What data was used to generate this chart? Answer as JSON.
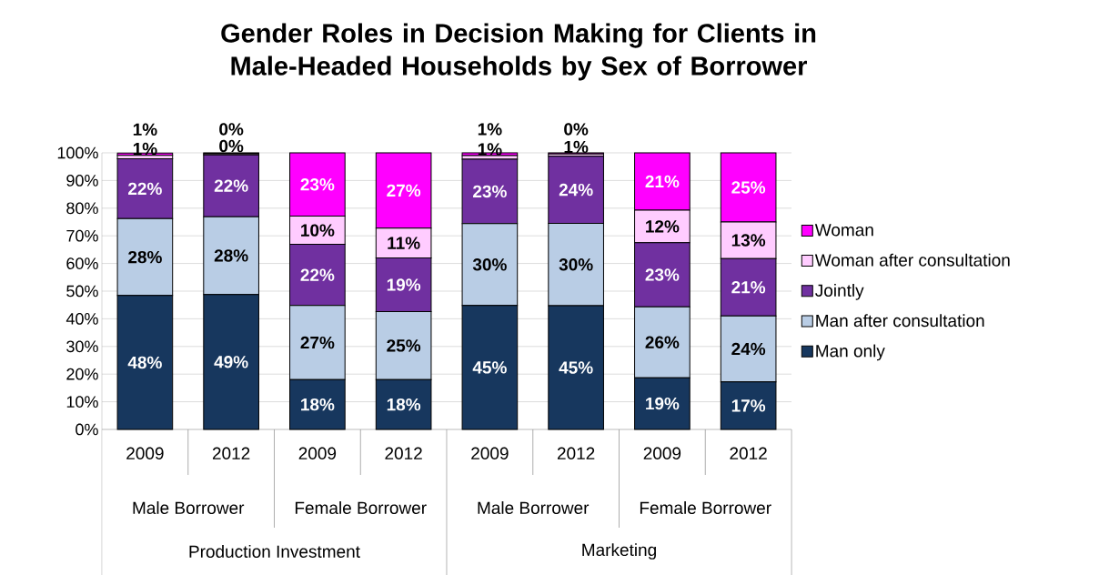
{
  "chart_data": {
    "type": "bar",
    "stacked": true,
    "title": "Gender Roles in Decision Making for Clients in Male-Headed Households by Sex of Borrower",
    "categories": [
      "2009",
      "2012",
      "2009",
      "2012",
      "2009",
      "2012",
      "2009",
      "2012"
    ],
    "series": [
      {
        "name": "Man only",
        "color": "#17375e",
        "values": [
          48.4,
          48.8,
          18.0,
          18.0,
          44.8,
          44.7,
          18.7,
          17.2
        ],
        "value_labels": [
          "48%",
          "49%",
          "18%",
          "18%",
          "45%",
          "45%",
          "19%",
          "17%"
        ]
      },
      {
        "name": "Man after consultation",
        "color": "#b9cde5",
        "values": [
          27.8,
          28.1,
          26.8,
          24.6,
          29.6,
          29.8,
          25.6,
          23.8
        ],
        "value_labels": [
          "28%",
          "28%",
          "27%",
          "25%",
          "30%",
          "30%",
          "26%",
          "24%"
        ]
      },
      {
        "name": "Jointly",
        "color": "#7030a0",
        "values": [
          21.7,
          22.4,
          22.1,
          19.4,
          23.3,
          24.3,
          23.2,
          20.8
        ],
        "value_labels": [
          "22%",
          "22%",
          "22%",
          "19%",
          "23%",
          "24%",
          "23%",
          "21%"
        ]
      },
      {
        "name": "Woman after consultation",
        "color": "#ffccff",
        "values": [
          1.2,
          0.4,
          10.2,
          10.8,
          1.3,
          0.8,
          11.8,
          13.2
        ],
        "value_labels": [
          "1%",
          "0%",
          "10%",
          "11%",
          "1%",
          "1%",
          "12%",
          "13%"
        ]
      },
      {
        "name": "Woman",
        "color": "#ff00ff",
        "values": [
          0.8,
          0.3,
          22.9,
          27.2,
          1.0,
          0.4,
          20.7,
          25.0
        ],
        "value_labels": [
          "1%",
          "0%",
          "23%",
          "27%",
          "1%",
          "0%",
          "21%",
          "25%"
        ]
      }
    ],
    "ylim": [
      0,
      100
    ],
    "yticks": [
      {
        "value": 0,
        "label": "0%"
      },
      {
        "value": 10,
        "label": "10%"
      },
      {
        "value": 20,
        "label": "20%"
      },
      {
        "value": 30,
        "label": "30%"
      },
      {
        "value": 40,
        "label": "40%"
      },
      {
        "value": 50,
        "label": "50%"
      },
      {
        "value": 60,
        "label": "60%"
      },
      {
        "value": 70,
        "label": "70%"
      },
      {
        "value": 80,
        "label": "80%"
      },
      {
        "value": 90,
        "label": "90%"
      },
      {
        "value": 100,
        "label": "100%"
      }
    ],
    "grid": "y",
    "legend": "right",
    "annotations": [
      "Male Borrower",
      "Female Borrower",
      "Male Borrower",
      "Female Borrower",
      "Production Investment",
      "Marketing"
    ]
  }
}
